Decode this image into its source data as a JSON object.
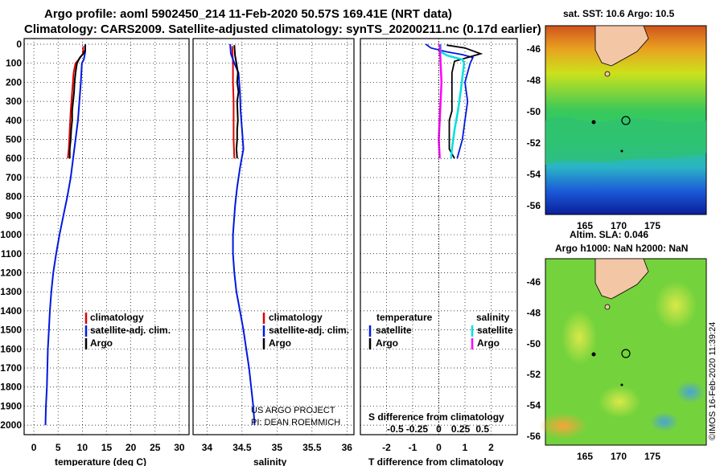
{
  "header": {
    "line1": "Argo profile: aoml 5902450_214 11-Feb-2020 50.57S 169.41E (NRT data)",
    "line2": "Climatology: CARS2009. Satellite-adjusted climatology: synTS_20200211.nc (0.17d earlier)"
  },
  "colors": {
    "climatology": "#e00000",
    "satellite": "#0018e0",
    "argo": "#000000",
    "sat_salinity": "#00e0e0",
    "argo_salinity": "#ff00ff"
  },
  "chart_data": [
    {
      "id": "temperature",
      "type": "line",
      "xlabel": "temperature (deg C)",
      "xlim": [
        -2,
        32
      ],
      "xticks": [
        "0",
        "5",
        "10",
        "15",
        "20",
        "25",
        "30"
      ],
      "ylim": [
        0,
        2050
      ],
      "yticks": [
        "0",
        "100",
        "200",
        "300",
        "400",
        "500",
        "600",
        "700",
        "800",
        "900",
        "1000",
        "1100",
        "1200",
        "1300",
        "1400",
        "1500",
        "1600",
        "1700",
        "1800",
        "1900",
        "2000"
      ],
      "legend": [
        "climatology",
        "satellite-adj. clim.",
        "Argo"
      ],
      "series": [
        {
          "name": "climatology",
          "color": "#e00000",
          "points": [
            [
              10.2,
              10
            ],
            [
              10.1,
              50
            ],
            [
              9.3,
              80
            ],
            [
              8.6,
              100
            ],
            [
              8.2,
              150
            ],
            [
              7.9,
              250
            ],
            [
              7.6,
              350
            ],
            [
              7.4,
              450
            ],
            [
              7.2,
              550
            ],
            [
              7.0,
              600
            ]
          ]
        },
        {
          "name": "satellite-adj. clim.",
          "color": "#0018e0",
          "points": [
            [
              10.6,
              0
            ],
            [
              10.6,
              40
            ],
            [
              10.3,
              80
            ],
            [
              9.9,
              100
            ],
            [
              9.7,
              200
            ],
            [
              9.4,
              300
            ],
            [
              9.1,
              400
            ],
            [
              8.6,
              500
            ],
            [
              8.1,
              600
            ],
            [
              7.6,
              700
            ],
            [
              6.9,
              800
            ],
            [
              6.1,
              900
            ],
            [
              5.3,
              1000
            ],
            [
              4.6,
              1100
            ],
            [
              4.0,
              1200
            ],
            [
              3.6,
              1300
            ],
            [
              3.3,
              1400
            ],
            [
              3.1,
              1500
            ],
            [
              2.9,
              1600
            ],
            [
              2.8,
              1700
            ],
            [
              2.7,
              1800
            ],
            [
              2.5,
              1900
            ],
            [
              2.4,
              2000
            ]
          ]
        },
        {
          "name": "Argo",
          "color": "#000000",
          "points": [
            [
              10.6,
              5
            ],
            [
              10.6,
              30
            ],
            [
              10.2,
              50
            ],
            [
              9.5,
              70
            ],
            [
              8.9,
              100
            ],
            [
              8.6,
              150
            ],
            [
              8.4,
              200
            ],
            [
              8.3,
              250
            ],
            [
              8.1,
              300
            ],
            [
              7.9,
              350
            ],
            [
              7.9,
              400
            ],
            [
              7.7,
              450
            ],
            [
              7.6,
              500
            ],
            [
              7.4,
              550
            ],
            [
              7.4,
              600
            ]
          ]
        }
      ]
    },
    {
      "id": "salinity",
      "type": "line",
      "xlabel": "salinity",
      "xlim": [
        33.8,
        36.1
      ],
      "xticks": [
        "34",
        "34.5",
        "35",
        "35.5",
        "36"
      ],
      "ylim": [
        0,
        2050
      ],
      "legend": [
        "climatology",
        "satellite-adj. clim.",
        "Argo"
      ],
      "credit": [
        "US ARGO PROJECT",
        "PI: DEAN ROEMMICH"
      ],
      "series": [
        {
          "name": "climatology",
          "color": "#e00000",
          "points": [
            [
              34.36,
              10
            ],
            [
              34.37,
              100
            ],
            [
              34.37,
              200
            ],
            [
              34.38,
              300
            ],
            [
              34.38,
              400
            ],
            [
              34.38,
              500
            ],
            [
              34.39,
              600
            ]
          ]
        },
        {
          "name": "satellite-adj. clim.",
          "color": "#0018e0",
          "points": [
            [
              34.33,
              0
            ],
            [
              34.34,
              50
            ],
            [
              34.39,
              100
            ],
            [
              34.45,
              150
            ],
            [
              34.47,
              250
            ],
            [
              34.48,
              350
            ],
            [
              34.5,
              450
            ],
            [
              34.52,
              550
            ],
            [
              34.47,
              650
            ],
            [
              34.43,
              750
            ],
            [
              34.4,
              850
            ],
            [
              34.37,
              1000
            ],
            [
              34.37,
              1100
            ],
            [
              34.39,
              1200
            ],
            [
              34.42,
              1300
            ],
            [
              34.47,
              1400
            ],
            [
              34.52,
              1500
            ],
            [
              34.56,
              1600
            ],
            [
              34.6,
              1700
            ],
            [
              34.63,
              1800
            ],
            [
              34.66,
              1900
            ],
            [
              34.68,
              2000
            ]
          ]
        },
        {
          "name": "Argo",
          "color": "#000000",
          "points": [
            [
              34.39,
              5
            ],
            [
              34.4,
              60
            ],
            [
              34.42,
              100
            ],
            [
              34.44,
              150
            ],
            [
              34.43,
              200
            ],
            [
              34.45,
              250
            ],
            [
              34.43,
              300
            ],
            [
              34.44,
              400
            ],
            [
              34.43,
              450
            ],
            [
              34.43,
              500
            ],
            [
              34.42,
              550
            ],
            [
              34.43,
              600
            ]
          ]
        }
      ]
    },
    {
      "id": "difference",
      "type": "line",
      "xlabel": "T difference from climatology",
      "xlabel2": "S difference from climatology",
      "xlim": [
        -3,
        3
      ],
      "xticks": [
        "-2",
        "-1",
        "0",
        "1",
        "2"
      ],
      "xticks2": [
        "-0.5",
        "-0.25",
        "0",
        "0.25",
        "0.5"
      ],
      "ylim": [
        0,
        2050
      ],
      "legend_heads": [
        "temperature",
        "salinity"
      ],
      "legend_left": [
        "satellite",
        "Argo"
      ],
      "legend_right": [
        "satellite",
        "Argo"
      ],
      "series": [
        {
          "name": "temperature satellite",
          "color": "#0018e0",
          "points": [
            [
              -0.5,
              0
            ],
            [
              -0.3,
              20
            ],
            [
              0.3,
              40
            ],
            [
              0.9,
              55
            ],
            [
              1.3,
              70
            ],
            [
              1.2,
              100
            ],
            [
              1.0,
              200
            ],
            [
              1.1,
              300
            ],
            [
              1.0,
              400
            ],
            [
              0.9,
              500
            ],
            [
              0.7,
              600
            ]
          ]
        },
        {
          "name": "temperature Argo",
          "color": "#000000",
          "points": [
            [
              0.3,
              5
            ],
            [
              1.0,
              20
            ],
            [
              1.6,
              50
            ],
            [
              0.6,
              90
            ],
            [
              0.5,
              150
            ],
            [
              0.5,
              250
            ],
            [
              0.5,
              350
            ],
            [
              0.4,
              400
            ],
            [
              0.4,
              500
            ],
            [
              0.4,
              550
            ],
            [
              0.6,
              600
            ]
          ]
        },
        {
          "name": "salinity satellite",
          "color": "#00e0e0",
          "points": [
            [
              0.02,
              0
            ],
            [
              0.02,
              40
            ],
            [
              0.1,
              60
            ],
            [
              0.27,
              80
            ],
            [
              0.29,
              100
            ],
            [
              0.25,
              250
            ],
            [
              0.22,
              350
            ],
            [
              0.18,
              450
            ],
            [
              0.15,
              550
            ],
            [
              0.14,
              600
            ]
          ]
        },
        {
          "name": "salinity Argo",
          "color": "#ff00ff",
          "points": [
            [
              0.01,
              0
            ],
            [
              0.02,
              100
            ],
            [
              0.03,
              200
            ],
            [
              0.02,
              300
            ],
            [
              0.01,
              400
            ],
            [
              0.0,
              500
            ],
            [
              0.01,
              600
            ]
          ]
        }
      ]
    },
    {
      "id": "sst_map",
      "type": "heatmap",
      "title": "sat. SST: 10.6 Argo: 10.5",
      "xticks": [
        "165",
        "170",
        "175"
      ],
      "yticks": [
        "-46",
        "-48",
        "-50",
        "-52",
        "-54",
        "-56"
      ],
      "float_position": [
        169.41,
        -50.57
      ]
    },
    {
      "id": "sla_map",
      "type": "heatmap",
      "title": "Altim. SLA: 0.046",
      "subtitle": "Argo h1000: NaN h2000: NaN",
      "xticks": [
        "165",
        "170",
        "175"
      ],
      "yticks": [
        "-46",
        "-48",
        "-50",
        "-52",
        "-54",
        "-56"
      ],
      "float_position": [
        169.41,
        -50.57
      ]
    }
  ],
  "watermark": "©IMOS 16-Feb-2020 11:39:24"
}
